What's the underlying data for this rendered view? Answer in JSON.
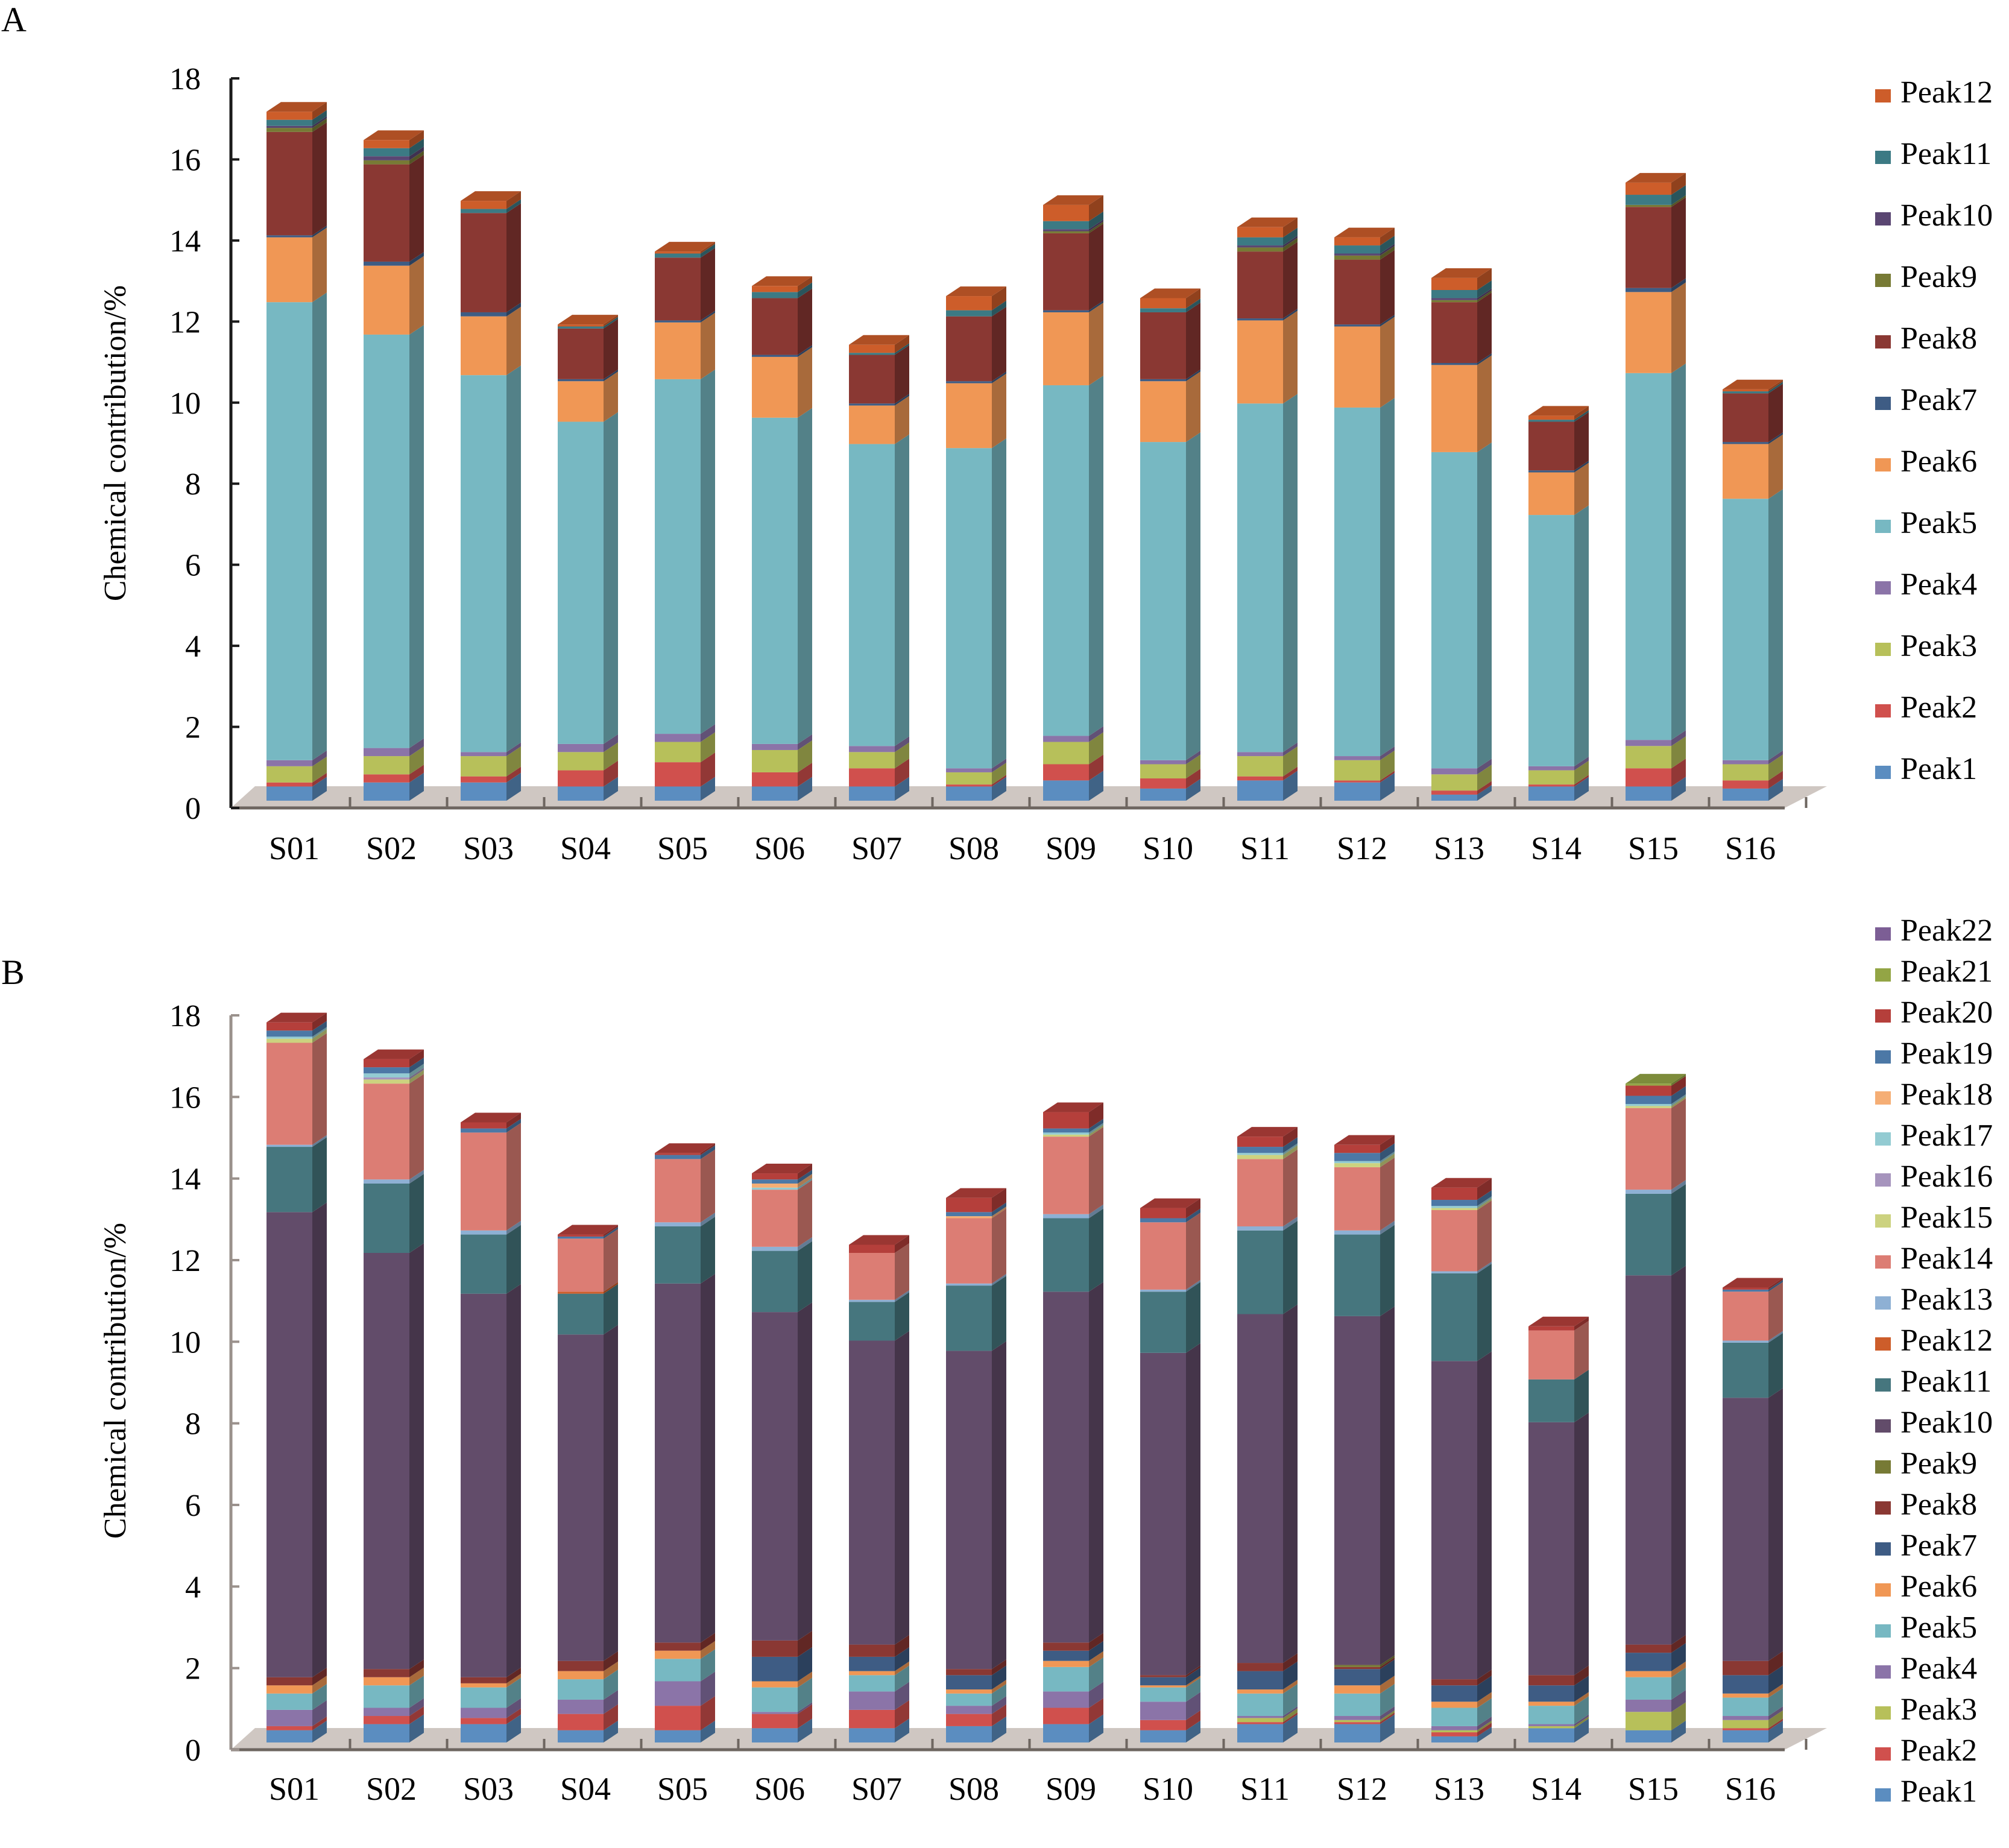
{
  "chart_data": [
    {
      "type": "bar",
      "stacked": true,
      "style": "3d-stacked-column",
      "panel_label": "A",
      "title": "",
      "xlabel": "",
      "ylabel": "Chemical contribution/%",
      "ylim": [
        0,
        18
      ],
      "yticks": [
        "0",
        "2",
        "4",
        "6",
        "8",
        "10",
        "12",
        "14",
        "16",
        "18"
      ],
      "grid": false,
      "legend_position": "right",
      "categories": [
        "S01",
        "S02",
        "S03",
        "S04",
        "S05",
        "S06",
        "S07",
        "S08",
        "S09",
        "S10",
        "S11",
        "S12",
        "S13",
        "S14",
        "S15",
        "S16"
      ],
      "series": [
        {
          "name": "Peak1",
          "color": "#5B8DC0",
          "values": [
            0.35,
            0.45,
            0.45,
            0.35,
            0.35,
            0.35,
            0.35,
            0.35,
            0.5,
            0.3,
            0.5,
            0.45,
            0.15,
            0.35,
            0.35,
            0.3
          ]
        },
        {
          "name": "Peak2",
          "color": "#D0504D",
          "values": [
            0.1,
            0.2,
            0.15,
            0.4,
            0.6,
            0.35,
            0.45,
            0.05,
            0.4,
            0.25,
            0.1,
            0.05,
            0.1,
            0.05,
            0.45,
            0.2
          ]
        },
        {
          "name": "Peak3",
          "color": "#B7C05A",
          "values": [
            0.4,
            0.45,
            0.5,
            0.45,
            0.5,
            0.55,
            0.4,
            0.3,
            0.55,
            0.35,
            0.5,
            0.5,
            0.4,
            0.35,
            0.55,
            0.4
          ]
        },
        {
          "name": "Peak4",
          "color": "#8B74A8",
          "values": [
            0.15,
            0.2,
            0.1,
            0.2,
            0.2,
            0.15,
            0.15,
            0.1,
            0.15,
            0.1,
            0.1,
            0.1,
            0.15,
            0.1,
            0.15,
            0.1
          ]
        },
        {
          "name": "Peak5",
          "color": "#77B8C2",
          "values": [
            11.3,
            10.2,
            9.3,
            7.95,
            8.75,
            8.05,
            7.45,
            7.9,
            8.65,
            7.85,
            8.6,
            8.6,
            7.8,
            6.2,
            9.05,
            6.45
          ]
        },
        {
          "name": "Peak6",
          "color": "#F09755",
          "values": [
            1.6,
            1.7,
            1.45,
            1.0,
            1.4,
            1.5,
            0.95,
            1.6,
            1.8,
            1.5,
            2.05,
            2.0,
            2.15,
            1.05,
            2.0,
            1.35
          ]
        },
        {
          "name": "Peak7",
          "color": "#3E5C84",
          "values": [
            0.05,
            0.1,
            0.1,
            0.05,
            0.05,
            0.05,
            0.05,
            0.05,
            0.05,
            0.05,
            0.05,
            0.05,
            0.05,
            0.05,
            0.1,
            0.05
          ]
        },
        {
          "name": "Peak8",
          "color": "#8A3833",
          "values": [
            2.55,
            2.4,
            2.45,
            1.25,
            1.55,
            1.4,
            1.2,
            1.6,
            1.9,
            1.65,
            1.65,
            1.6,
            1.5,
            1.2,
            2.0,
            1.2
          ]
        },
        {
          "name": "Peak9",
          "color": "#777A35",
          "values": [
            0.1,
            0.1,
            0.0,
            0.0,
            0.0,
            0.0,
            0.0,
            0.0,
            0.05,
            0.0,
            0.1,
            0.1,
            0.05,
            0.0,
            0.05,
            0.0
          ]
        },
        {
          "name": "Peak10",
          "color": "#5A4672",
          "values": [
            0.05,
            0.1,
            0.0,
            0.0,
            0.0,
            0.0,
            0.0,
            0.0,
            0.05,
            0.0,
            0.05,
            0.05,
            0.05,
            0.0,
            0.0,
            0.0
          ]
        },
        {
          "name": "Peak11",
          "color": "#3C7A84",
          "values": [
            0.15,
            0.2,
            0.1,
            0.05,
            0.1,
            0.15,
            0.05,
            0.15,
            0.2,
            0.1,
            0.2,
            0.2,
            0.2,
            0.05,
            0.25,
            0.05
          ]
        },
        {
          "name": "Peak12",
          "color": "#CD5D2A",
          "values": [
            0.2,
            0.2,
            0.2,
            0.05,
            0.05,
            0.15,
            0.2,
            0.35,
            0.4,
            0.25,
            0.25,
            0.2,
            0.3,
            0.1,
            0.3,
            0.05
          ]
        }
      ],
      "totals_approx": [
        16.9,
        16.2,
        14.8,
        11.7,
        13.7,
        12.9,
        11.2,
        12.5,
        14.6,
        12.4,
        14.2,
        14.0,
        12.9,
        9.5,
        15.1,
        10.1
      ]
    },
    {
      "type": "bar",
      "stacked": true,
      "style": "3d-stacked-column",
      "panel_label": "B",
      "title": "",
      "xlabel": "",
      "ylabel": "Chemical contribution/%",
      "ylim": [
        0,
        18
      ],
      "yticks": [
        "0",
        "2",
        "4",
        "6",
        "8",
        "10",
        "12",
        "14",
        "16",
        "18"
      ],
      "grid": false,
      "legend_position": "right",
      "categories": [
        "S01",
        "S02",
        "S03",
        "S04",
        "S05",
        "S06",
        "S07",
        "S08",
        "S09",
        "S10",
        "S11",
        "S12",
        "S13",
        "S14",
        "S15",
        "S16"
      ],
      "series": [
        {
          "name": "Peak1",
          "color": "#5B8DC0",
          "values": [
            0.3,
            0.45,
            0.45,
            0.3,
            0.3,
            0.35,
            0.35,
            0.4,
            0.45,
            0.3,
            0.45,
            0.45,
            0.15,
            0.35,
            0.3,
            0.3
          ]
        },
        {
          "name": "Peak2",
          "color": "#D0504D",
          "values": [
            0.1,
            0.2,
            0.15,
            0.4,
            0.6,
            0.35,
            0.45,
            0.3,
            0.4,
            0.25,
            0.05,
            0.05,
            0.1,
            0.0,
            0.0,
            0.05
          ]
        },
        {
          "name": "Peak3",
          "color": "#B7C05A",
          "values": [
            0.0,
            0.0,
            0.0,
            0.0,
            0.0,
            0.0,
            0.0,
            0.0,
            0.0,
            0.0,
            0.1,
            0.05,
            0.05,
            0.05,
            0.45,
            0.2
          ]
        },
        {
          "name": "Peak4",
          "color": "#8B74A8",
          "values": [
            0.4,
            0.2,
            0.25,
            0.35,
            0.6,
            0.05,
            0.45,
            0.2,
            0.4,
            0.45,
            0.05,
            0.1,
            0.1,
            0.05,
            0.3,
            0.1
          ]
        },
        {
          "name": "Peak5",
          "color": "#77B8C2",
          "values": [
            0.4,
            0.55,
            0.5,
            0.5,
            0.55,
            0.6,
            0.4,
            0.3,
            0.6,
            0.35,
            0.55,
            0.55,
            0.45,
            0.45,
            0.55,
            0.45
          ]
        },
        {
          "name": "Peak6",
          "color": "#F09755",
          "values": [
            0.2,
            0.2,
            0.1,
            0.2,
            0.2,
            0.15,
            0.1,
            0.1,
            0.15,
            0.05,
            0.1,
            0.2,
            0.15,
            0.1,
            0.15,
            0.1
          ]
        },
        {
          "name": "Peak7",
          "color": "#3E5C84",
          "values": [
            0.0,
            0.0,
            0.0,
            0.0,
            0.0,
            0.6,
            0.35,
            0.35,
            0.25,
            0.2,
            0.45,
            0.4,
            0.4,
            0.4,
            0.45,
            0.45
          ]
        },
        {
          "name": "Peak8",
          "color": "#8A3833",
          "values": [
            0.2,
            0.2,
            0.15,
            0.25,
            0.2,
            0.4,
            0.3,
            0.15,
            0.2,
            0.05,
            0.2,
            0.05,
            0.15,
            0.25,
            0.2,
            0.35
          ]
        },
        {
          "name": "Peak9",
          "color": "#777A35",
          "values": [
            0.0,
            0.0,
            0.0,
            0.0,
            0.0,
            0.0,
            0.0,
            0.0,
            0.0,
            0.0,
            0.0,
            0.05,
            0.0,
            0.0,
            0.0,
            0.0
          ]
        },
        {
          "name": "Peak10",
          "color": "#624C6A",
          "values": [
            11.4,
            10.2,
            9.4,
            8.0,
            8.8,
            8.05,
            7.45,
            7.8,
            8.6,
            7.9,
            8.55,
            8.55,
            7.8,
            6.2,
            9.05,
            6.45
          ]
        },
        {
          "name": "Peak11",
          "color": "#46767E",
          "values": [
            1.6,
            1.7,
            1.45,
            1.0,
            1.4,
            1.5,
            0.95,
            1.6,
            1.8,
            1.5,
            2.05,
            2.0,
            2.15,
            1.05,
            2.0,
            1.35
          ]
        },
        {
          "name": "Peak12",
          "color": "#CD5D2A",
          "values": [
            0.0,
            0.0,
            0.0,
            0.05,
            0.0,
            0.0,
            0.0,
            0.0,
            0.0,
            0.0,
            0.0,
            0.0,
            0.0,
            0.0,
            0.0,
            0.0
          ]
        },
        {
          "name": "Peak13",
          "color": "#8EB0D4",
          "values": [
            0.05,
            0.1,
            0.1,
            0.0,
            0.1,
            0.1,
            0.05,
            0.05,
            0.1,
            0.05,
            0.1,
            0.1,
            0.05,
            0.0,
            0.1,
            0.05
          ]
        },
        {
          "name": "Peak14",
          "color": "#DC7D74",
          "values": [
            2.5,
            2.35,
            2.4,
            1.3,
            1.55,
            1.4,
            1.15,
            1.6,
            1.9,
            1.65,
            1.65,
            1.55,
            1.5,
            1.2,
            2.0,
            1.2
          ]
        },
        {
          "name": "Peak15",
          "color": "#CCD27F",
          "values": [
            0.1,
            0.1,
            0.0,
            0.0,
            0.0,
            0.0,
            0.0,
            0.0,
            0.05,
            0.0,
            0.1,
            0.1,
            0.05,
            0.0,
            0.05,
            0.0
          ]
        },
        {
          "name": "Peak16",
          "color": "#A694BD",
          "values": [
            0.0,
            0.05,
            0.0,
            0.0,
            0.0,
            0.0,
            0.0,
            0.0,
            0.0,
            0.0,
            0.0,
            0.0,
            0.0,
            0.0,
            0.0,
            0.0
          ]
        },
        {
          "name": "Peak17",
          "color": "#93CBD2",
          "values": [
            0.05,
            0.1,
            0.0,
            0.0,
            0.0,
            0.05,
            0.0,
            0.0,
            0.05,
            0.0,
            0.05,
            0.05,
            0.05,
            0.0,
            0.05,
            0.0
          ]
        },
        {
          "name": "Peak18",
          "color": "#F5AE75",
          "values": [
            0.0,
            0.0,
            0.0,
            0.0,
            0.0,
            0.1,
            0.0,
            0.05,
            0.0,
            0.0,
            0.0,
            0.0,
            0.0,
            0.0,
            0.0,
            0.0
          ]
        },
        {
          "name": "Peak19",
          "color": "#4C78A6",
          "values": [
            0.15,
            0.15,
            0.1,
            0.05,
            0.1,
            0.1,
            0.0,
            0.1,
            0.1,
            0.1,
            0.15,
            0.2,
            0.15,
            0.0,
            0.2,
            0.05
          ]
        },
        {
          "name": "Peak20",
          "color": "#B53F3B",
          "values": [
            0.2,
            0.2,
            0.15,
            0.05,
            0.05,
            0.15,
            0.2,
            0.35,
            0.4,
            0.25,
            0.25,
            0.2,
            0.3,
            0.1,
            0.25,
            0.05
          ]
        },
        {
          "name": "Peak21",
          "color": "#93A545",
          "values": [
            0.0,
            0.0,
            0.0,
            0.0,
            0.0,
            0.0,
            0.0,
            0.0,
            0.0,
            0.0,
            0.0,
            0.0,
            0.0,
            0.0,
            0.05,
            0.0
          ]
        },
        {
          "name": "Peak22",
          "color": "#7C5E95",
          "values": [
            0.0,
            0.0,
            0.0,
            0.0,
            0.0,
            0.0,
            0.0,
            0.0,
            0.0,
            0.0,
            0.0,
            0.0,
            0.0,
            0.0,
            0.0,
            0.0
          ]
        }
      ],
      "totals_approx": [
        17.5,
        16.6,
        15.2,
        12.3,
        14.4,
        14.1,
        12.2,
        13.6,
        15.5,
        13.2,
        15.0,
        14.7,
        13.7,
        10.2,
        16.1,
        11.1
      ]
    }
  ]
}
